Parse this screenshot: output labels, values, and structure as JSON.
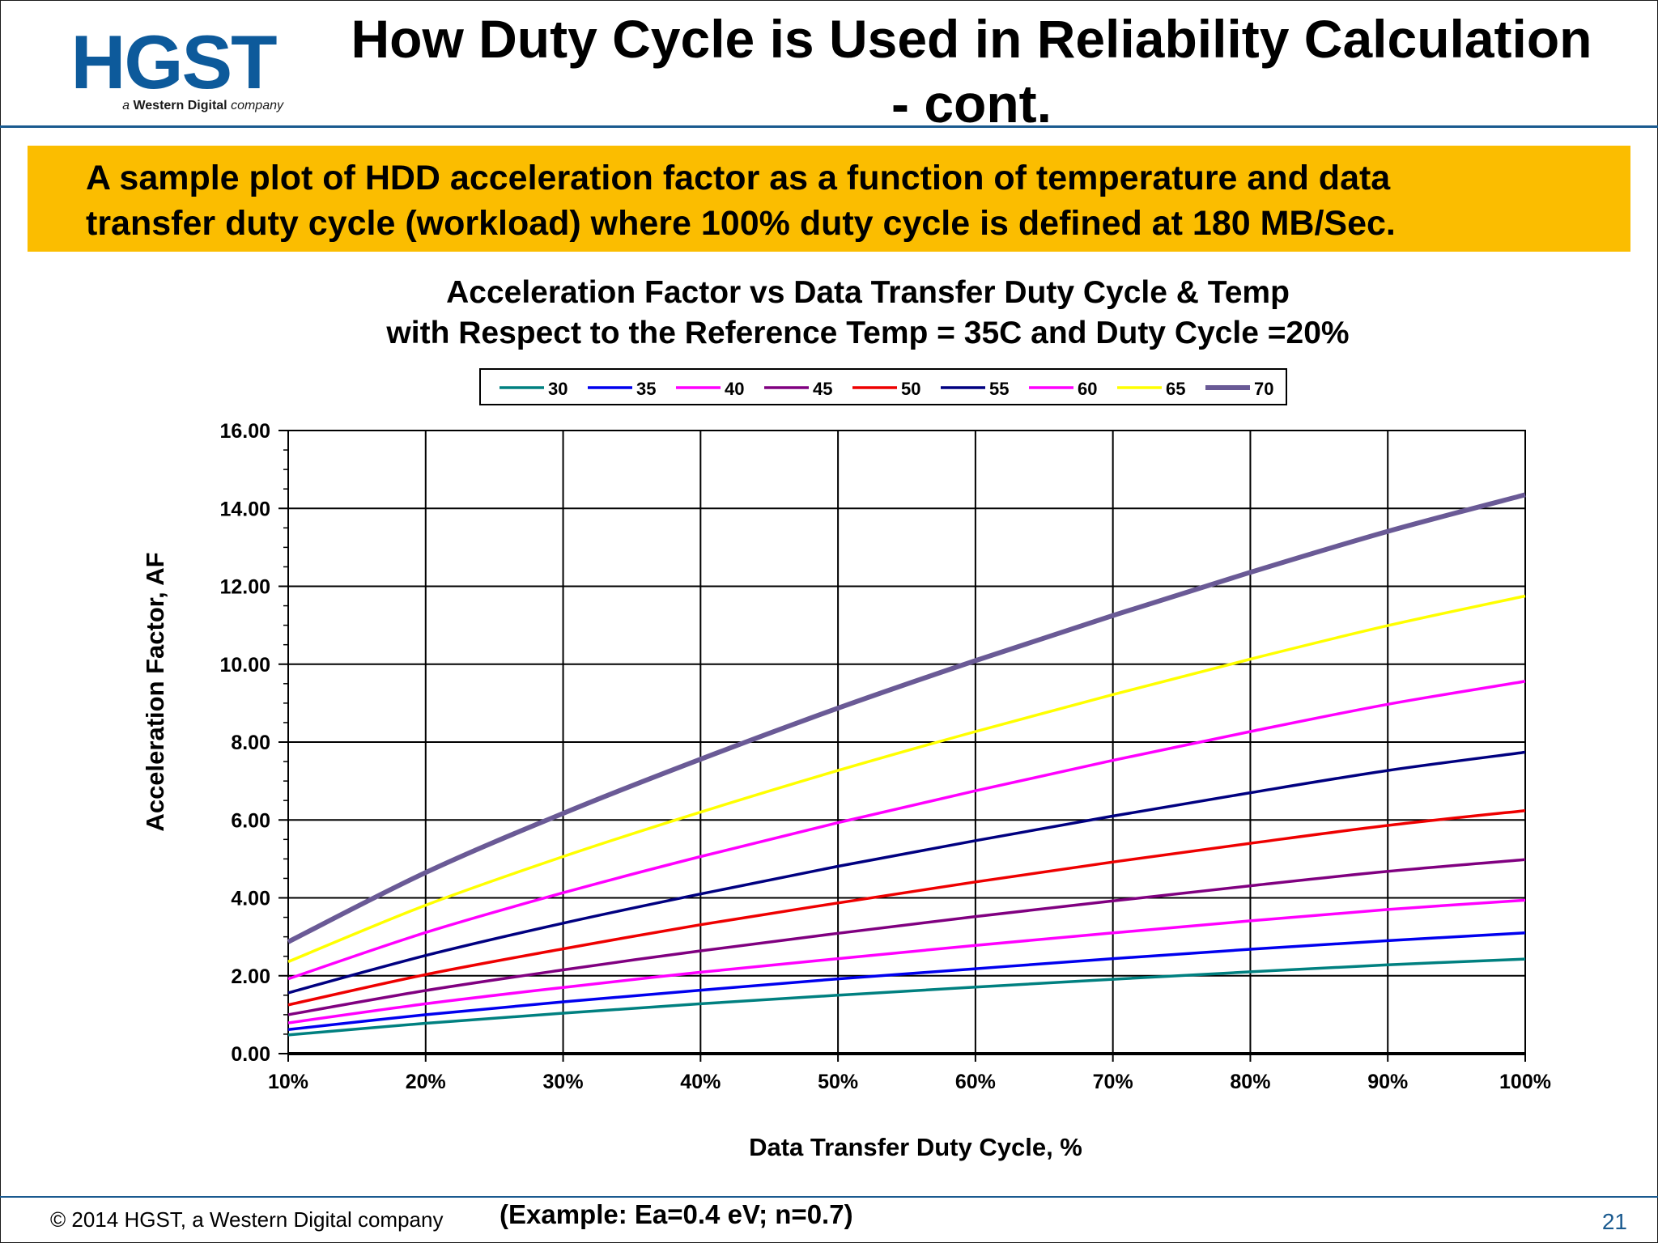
{
  "header": {
    "logo_text": "HGST",
    "logo_tagline_prefix": "a ",
    "logo_tagline_bold": "Western Digital",
    "logo_tagline_suffix": " company",
    "title_line1": "How Duty Cycle is Used in Reliability Calculation",
    "title_line2": "- cont."
  },
  "banner": {
    "line1": "A sample plot of HDD acceleration factor as a function of temperature and data",
    "line2": "transfer duty cycle (workload) where 100% duty cycle is defined at 180 MB/Sec."
  },
  "chart_data": {
    "type": "line",
    "title_line1": "Acceleration Factor vs Data Transfer Duty Cycle & Temp",
    "title_line2": "with Respect to the Reference Temp = 35C and Duty Cycle =20%",
    "xlabel": "Data Transfer Duty Cycle, %",
    "ylabel": "Acceleration Factor, AF",
    "x": [
      10,
      20,
      30,
      40,
      50,
      60,
      70,
      80,
      90,
      100
    ],
    "x_tick_labels": [
      "10%",
      "20%",
      "30%",
      "40%",
      "50%",
      "60%",
      "70%",
      "80%",
      "90%",
      "100%"
    ],
    "xlim": [
      10,
      100
    ],
    "ylim": [
      0,
      16
    ],
    "y_tick_labels": [
      "0.00",
      "2.00",
      "4.00",
      "6.00",
      "8.00",
      "10.00",
      "12.00",
      "14.00",
      "16.00"
    ],
    "grid": true,
    "legend_position": "top-center",
    "series": [
      {
        "name": "30",
        "color": "#008080",
        "values": [
          0.48,
          0.78,
          1.04,
          1.28,
          1.5,
          1.71,
          1.91,
          2.1,
          2.28,
          2.43
        ]
      },
      {
        "name": "35",
        "color": "#0000ee",
        "values": [
          0.62,
          1.0,
          1.33,
          1.63,
          1.92,
          2.18,
          2.44,
          2.68,
          2.9,
          3.1
        ]
      },
      {
        "name": "40",
        "color": "#ff00ff",
        "values": [
          0.79,
          1.28,
          1.7,
          2.09,
          2.44,
          2.78,
          3.1,
          3.41,
          3.7,
          3.94
        ]
      },
      {
        "name": "45",
        "color": "#800080",
        "values": [
          1.0,
          1.62,
          2.15,
          2.64,
          3.09,
          3.52,
          3.92,
          4.31,
          4.68,
          4.98
        ]
      },
      {
        "name": "50",
        "color": "#ee0000",
        "values": [
          1.25,
          2.03,
          2.69,
          3.31,
          3.87,
          4.41,
          4.92,
          5.4,
          5.86,
          6.24
        ]
      },
      {
        "name": "55",
        "color": "#000080",
        "values": [
          1.56,
          2.52,
          3.35,
          4.1,
          4.81,
          5.47,
          6.1,
          6.7,
          7.27,
          7.74
        ]
      },
      {
        "name": "60",
        "color": "#ff00ff",
        "values": [
          1.92,
          3.11,
          4.13,
          5.06,
          5.93,
          6.75,
          7.53,
          8.27,
          8.97,
          9.56
        ]
      },
      {
        "name": "65",
        "color": "#ffff00",
        "values": [
          2.36,
          3.81,
          5.06,
          6.2,
          7.27,
          8.27,
          9.22,
          10.13,
          10.99,
          11.75
        ]
      },
      {
        "name": "70",
        "color": "#6a5a96",
        "values": [
          2.87,
          4.65,
          6.17,
          7.56,
          8.87,
          10.09,
          11.25,
          12.36,
          13.41,
          14.35
        ]
      }
    ]
  },
  "footer": {
    "copyright": "© 2014 HGST, a Western Digital company",
    "example": "(Example: Ea=0.4 eV; n=0.7)",
    "page_number": "21"
  }
}
